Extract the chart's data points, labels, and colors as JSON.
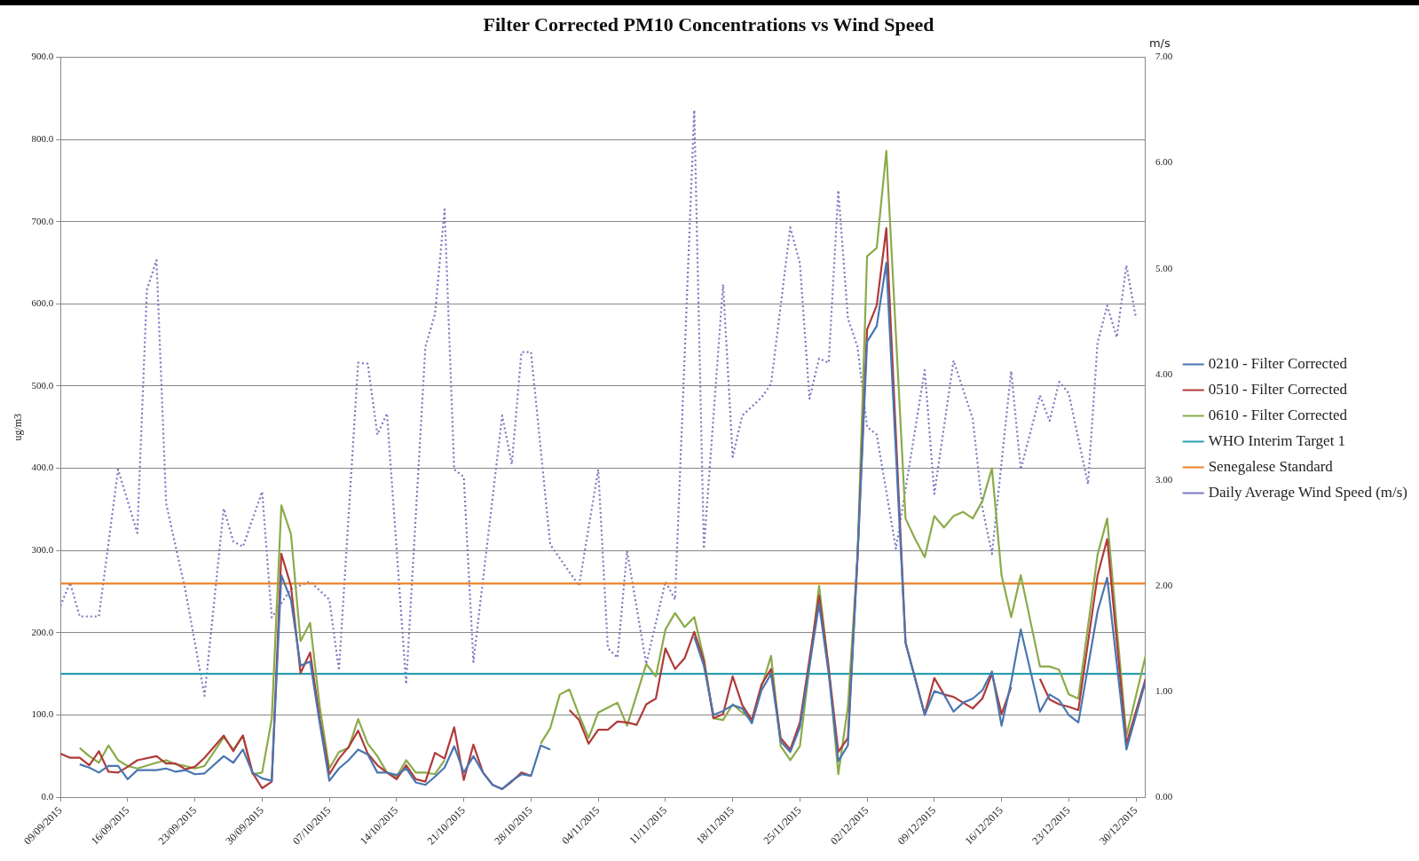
{
  "chart_data": {
    "type": "line",
    "title": "Filter Corrected PM10 Concentrations vs Wind Speed",
    "ylabel": "ug/m3",
    "y2label": "m/s",
    "xlim": [
      "2015-09-09",
      "2015-12-31"
    ],
    "xticks": [
      {
        "value": "2015-09-09",
        "label": "09/09/2015"
      },
      {
        "value": "2015-09-16",
        "label": "16/09/2015"
      },
      {
        "value": "2015-09-23",
        "label": "23/09/2015"
      },
      {
        "value": "2015-09-30",
        "label": "30/09/2015"
      },
      {
        "value": "2015-10-07",
        "label": "07/10/2015"
      },
      {
        "value": "2015-10-14",
        "label": "14/10/2015"
      },
      {
        "value": "2015-10-21",
        "label": "21/10/2015"
      },
      {
        "value": "2015-10-28",
        "label": "28/10/2015"
      },
      {
        "value": "2015-11-04",
        "label": "04/11/2015"
      },
      {
        "value": "2015-11-11",
        "label": "11/11/2015"
      },
      {
        "value": "2015-11-18",
        "label": "18/11/2015"
      },
      {
        "value": "2015-11-25",
        "label": "25/11/2015"
      },
      {
        "value": "2015-12-02",
        "label": "02/12/2015"
      },
      {
        "value": "2015-12-09",
        "label": "09/12/2015"
      },
      {
        "value": "2015-12-16",
        "label": "16/12/2015"
      },
      {
        "value": "2015-12-23",
        "label": "23/12/2015"
      },
      {
        "value": "2015-12-30",
        "label": "30/12/2015"
      }
    ],
    "ylim": [
      0,
      900
    ],
    "yticks": [
      {
        "value": 0,
        "label": "0.0"
      },
      {
        "value": 100,
        "label": "100.0"
      },
      {
        "value": 200,
        "label": "200.0"
      },
      {
        "value": 300,
        "label": "300.0"
      },
      {
        "value": 400,
        "label": "400.0"
      },
      {
        "value": 500,
        "label": "500.0"
      },
      {
        "value": 600,
        "label": "600.0"
      },
      {
        "value": 700,
        "label": "700.0"
      },
      {
        "value": 800,
        "label": "800.0"
      },
      {
        "value": 900,
        "label": "900.0"
      }
    ],
    "y2lim": [
      0,
      7
    ],
    "y2ticks": [
      {
        "value": 0,
        "label": "0.00"
      },
      {
        "value": 1,
        "label": "1.00"
      },
      {
        "value": 2,
        "label": "2.00"
      },
      {
        "value": 3,
        "label": "3.00"
      },
      {
        "value": 4,
        "label": "4.00"
      },
      {
        "value": 5,
        "label": "5.00"
      },
      {
        "value": 6,
        "label": "6.00"
      },
      {
        "value": 7,
        "label": "7.00"
      }
    ],
    "grid": "y",
    "legend": "right",
    "marker": "none",
    "ref_lines": [
      {
        "axis": "y",
        "value": 150,
        "label": "WHO Interim Target 1",
        "color": "#2a9fb0"
      },
      {
        "axis": "y",
        "value": 260,
        "label": "Senegalese Standard",
        "color": "#e8822a"
      }
    ],
    "series": [
      {
        "name": "0210 - Filter Corrected",
        "color": "#4a76b0",
        "x": [
          "2015-09-11",
          "2015-09-12",
          "2015-09-13",
          "2015-09-14",
          "2015-09-15",
          "2015-09-16",
          "2015-09-17",
          "2015-09-19",
          "2015-09-20",
          "2015-09-21",
          "2015-09-22",
          "2015-09-23",
          "2015-09-24",
          "2015-09-26",
          "2015-09-27",
          "2015-09-28",
          "2015-09-29",
          "2015-09-30",
          "2015-10-01",
          "2015-10-02",
          "2015-10-03",
          "2015-10-04",
          "2015-10-05",
          "2015-10-06",
          "2015-10-07",
          "2015-10-08",
          "2015-10-09",
          "2015-10-10",
          "2015-10-11",
          "2015-10-12",
          "2015-10-13",
          "2015-10-14",
          "2015-10-15",
          "2015-10-16",
          "2015-10-17",
          "2015-10-18",
          "2015-10-19",
          "2015-10-20",
          "2015-10-21",
          "2015-10-22",
          "2015-10-23",
          "2015-10-24",
          "2015-10-25",
          "2015-10-26",
          "2015-10-27",
          "2015-10-28",
          "2015-10-29",
          "2015-10-30",
          "2015-11-06",
          "2015-11-14",
          "2015-11-15",
          "2015-11-16",
          "2015-11-17",
          "2015-11-18",
          "2015-11-19",
          "2015-11-20",
          "2015-11-21",
          "2015-11-22",
          "2015-11-23",
          "2015-11-24",
          "2015-11-25",
          "2015-11-27",
          "2015-11-28",
          "2015-11-29",
          "2015-11-30",
          "2015-12-01",
          "2015-12-02",
          "2015-12-03",
          "2015-12-04",
          "2015-12-06",
          "2015-12-08",
          "2015-12-09",
          "2015-12-10",
          "2015-12-11",
          "2015-12-12",
          "2015-12-13",
          "2015-12-14",
          "2015-12-15",
          "2015-12-16",
          "2015-12-17",
          "2015-12-18",
          "2015-12-20",
          "2015-12-21",
          "2015-12-22",
          "2015-12-23",
          "2015-12-24",
          "2015-12-26",
          "2015-12-27",
          "2015-12-29",
          "2015-12-31"
        ],
        "values": [
          40,
          36,
          30,
          38,
          38,
          22,
          33,
          33,
          35,
          31,
          33,
          28,
          29,
          50,
          42,
          58,
          30,
          23,
          20,
          270,
          240,
          160,
          165,
          90,
          20,
          35,
          45,
          58,
          52,
          30,
          30,
          27,
          35,
          18,
          15,
          25,
          36,
          62,
          30,
          50,
          30,
          15,
          10,
          20,
          28,
          26,
          63,
          58,
          null,
          195,
          160,
          100,
          105,
          112,
          108,
          90,
          130,
          150,
          68,
          55,
          85,
          235,
          150,
          44,
          63,
          292,
          554,
          573,
          650,
          188,
          100,
          129,
          125,
          104,
          115,
          120,
          130,
          153,
          87,
          140,
          204,
          104,
          125,
          118,
          100,
          91,
          226,
          267,
          58,
          141
        ]
      },
      {
        "name": "0510 - Filter Corrected",
        "color": "#b03a3a",
        "x": [
          "2015-09-09",
          "2015-09-10",
          "2015-09-11",
          "2015-09-12",
          "2015-09-13",
          "2015-09-14",
          "2015-09-15",
          "2015-09-16",
          "2015-09-17",
          "2015-09-19",
          "2015-09-20",
          "2015-09-21",
          "2015-09-22",
          "2015-09-23",
          "2015-09-24",
          "2015-09-26",
          "2015-09-27",
          "2015-09-28",
          "2015-09-29",
          "2015-09-30",
          "2015-10-01",
          "2015-10-02",
          "2015-10-03",
          "2015-10-04",
          "2015-10-05",
          "2015-10-06",
          "2015-10-07",
          "2015-10-08",
          "2015-10-09",
          "2015-10-10",
          "2015-10-11",
          "2015-10-12",
          "2015-10-13",
          "2015-10-14",
          "2015-10-15",
          "2015-10-16",
          "2015-10-17",
          "2015-10-18",
          "2015-10-19",
          "2015-10-20",
          "2015-10-21",
          "2015-10-22",
          "2015-10-23",
          "2015-10-24",
          "2015-10-25",
          "2015-10-26",
          "2015-10-27",
          "2015-10-28",
          "2015-10-30",
          "2015-11-01",
          "2015-11-02",
          "2015-11-03",
          "2015-11-04",
          "2015-11-05",
          "2015-11-06",
          "2015-11-07",
          "2015-11-08",
          "2015-11-09",
          "2015-11-10",
          "2015-11-11",
          "2015-11-12",
          "2015-11-13",
          "2015-11-14",
          "2015-11-15",
          "2015-11-16",
          "2015-11-17",
          "2015-11-18",
          "2015-11-19",
          "2015-11-20",
          "2015-11-21",
          "2015-11-22",
          "2015-11-23",
          "2015-11-24",
          "2015-11-25",
          "2015-11-27",
          "2015-11-28",
          "2015-11-29",
          "2015-11-30",
          "2015-12-01",
          "2015-12-02",
          "2015-12-03",
          "2015-12-04",
          "2015-12-06",
          "2015-12-08",
          "2015-12-09",
          "2015-12-10",
          "2015-12-11",
          "2015-12-12",
          "2015-12-13",
          "2015-12-14",
          "2015-12-15",
          "2015-12-16",
          "2015-12-17",
          "2015-12-18",
          "2015-12-20",
          "2015-12-21",
          "2015-12-22",
          "2015-12-23",
          "2015-12-24",
          "2015-12-26",
          "2015-12-27",
          "2015-12-29",
          "2015-12-31"
        ],
        "values": [
          53,
          48,
          48,
          39,
          56,
          31,
          30,
          37,
          45,
          50,
          41,
          41,
          34,
          37,
          48,
          75,
          56,
          75,
          30,
          11,
          19,
          296,
          257,
          151,
          176,
          95,
          28,
          47,
          61,
          81,
          53,
          39,
          30,
          22,
          39,
          22,
          19,
          54,
          47,
          85,
          21,
          64,
          30,
          15,
          10,
          19,
          30,
          26,
          null,
          106,
          94,
          65,
          82,
          82,
          92,
          91,
          88,
          113,
          120,
          181,
          156,
          169,
          201,
          166,
          96,
          101,
          147,
          112,
          94,
          137,
          156,
          72,
          58,
          91,
          245,
          157,
          55,
          72,
          292,
          569,
          598,
          692,
          188,
          101,
          145,
          125,
          122,
          115,
          108,
          120,
          150,
          101,
          134,
          null,
          144,
          119,
          113,
          110,
          106,
          270,
          314,
          65,
          144
        ]
      },
      {
        "name": "0610 - Filter Corrected",
        "color": "#8bab4a",
        "x": [
          "2015-09-11",
          "2015-09-12",
          "2015-09-13",
          "2015-09-14",
          "2015-09-15",
          "2015-09-16",
          "2015-09-17",
          "2015-09-19",
          "2015-09-20",
          "2015-09-21",
          "2015-09-22",
          "2015-09-23",
          "2015-09-24",
          "2015-09-26",
          "2015-09-27",
          "2015-09-28",
          "2015-09-29",
          "2015-09-30",
          "2015-10-01",
          "2015-10-02",
          "2015-10-03",
          "2015-10-04",
          "2015-10-05",
          "2015-10-06",
          "2015-10-07",
          "2015-10-08",
          "2015-10-09",
          "2015-10-10",
          "2015-10-11",
          "2015-10-12",
          "2015-10-13",
          "2015-10-14",
          "2015-10-15",
          "2015-10-16",
          "2015-10-17",
          "2015-10-18",
          "2015-10-19",
          "2015-10-24",
          "2015-10-29",
          "2015-10-30",
          "2015-10-31",
          "2015-11-01",
          "2015-11-02",
          "2015-11-03",
          "2015-11-04",
          "2015-11-05",
          "2015-11-06",
          "2015-11-07",
          "2015-11-09",
          "2015-11-10",
          "2015-11-11",
          "2015-11-12",
          "2015-11-13",
          "2015-11-14",
          "2015-11-15",
          "2015-11-16",
          "2015-11-17",
          "2015-11-18",
          "2015-11-19",
          "2015-11-20",
          "2015-11-21",
          "2015-11-22",
          "2015-11-23",
          "2015-11-24",
          "2015-11-25",
          "2015-11-27",
          "2015-11-28",
          "2015-11-29",
          "2015-11-30",
          "2015-12-01",
          "2015-12-02",
          "2015-12-03",
          "2015-12-04",
          "2015-12-06",
          "2015-12-07",
          "2015-12-08",
          "2015-12-09",
          "2015-12-10",
          "2015-12-11",
          "2015-12-12",
          "2015-12-13",
          "2015-12-14",
          "2015-12-15",
          "2015-12-16",
          "2015-12-17",
          "2015-12-18",
          "2015-12-20",
          "2015-12-21",
          "2015-12-22",
          "2015-12-23",
          "2015-12-24",
          "2015-12-26",
          "2015-12-27",
          "2015-12-29",
          "2015-12-31"
        ],
        "values": [
          60,
          50,
          42,
          63,
          45,
          38,
          35,
          42,
          45,
          40,
          38,
          35,
          38,
          73,
          58,
          75,
          28,
          30,
          95,
          355,
          320,
          190,
          212,
          110,
          35,
          55,
          60,
          95,
          65,
          50,
          30,
          25,
          45,
          30,
          30,
          28,
          45,
          null,
          65,
          84,
          125,
          131,
          100,
          72,
          103,
          109,
          115,
          87,
          162,
          147,
          204,
          224,
          207,
          219,
          169,
          96,
          94,
          113,
          103,
          94,
          134,
          172,
          62,
          45,
          62,
          257,
          157,
          28,
          110,
          292,
          658,
          668,
          786,
          339,
          314,
          292,
          342,
          328,
          342,
          347,
          339,
          360,
          400,
          270,
          219,
          270,
          159,
          159,
          155,
          125,
          120,
          295,
          339,
          75,
          172
        ]
      },
      {
        "name": "Daily Average Wind Speed (m/s)",
        "color": "#7a78c0",
        "axis": "y2",
        "line_style": "dotted",
        "x": [
          "2015-09-09",
          "2015-09-10",
          "2015-09-11",
          "2015-09-13",
          "2015-09-15",
          "2015-09-17",
          "2015-09-18",
          "2015-09-19",
          "2015-09-20",
          "2015-09-22",
          "2015-09-24",
          "2015-09-26",
          "2015-09-27",
          "2015-09-28",
          "2015-09-30",
          "2015-10-01",
          "2015-10-03",
          "2015-10-05",
          "2015-10-07",
          "2015-10-08",
          "2015-10-10",
          "2015-10-11",
          "2015-10-12",
          "2015-10-13",
          "2015-10-15",
          "2015-10-17",
          "2015-10-18",
          "2015-10-19",
          "2015-10-20",
          "2015-10-21",
          "2015-10-22",
          "2015-10-25",
          "2015-10-26",
          "2015-10-27",
          "2015-10-28",
          "2015-10-30",
          "2015-11-02",
          "2015-11-04",
          "2015-11-05",
          "2015-11-06",
          "2015-11-07",
          "2015-11-09",
          "2015-11-11",
          "2015-11-12",
          "2015-11-14",
          "2015-11-15",
          "2015-11-17",
          "2015-11-18",
          "2015-11-19",
          "2015-11-21",
          "2015-11-22",
          "2015-11-24",
          "2015-11-25",
          "2015-11-26",
          "2015-11-27",
          "2015-11-28",
          "2015-11-29",
          "2015-11-30",
          "2015-12-01",
          "2015-12-02",
          "2015-12-03",
          "2015-12-05",
          "2015-12-08",
          "2015-12-09",
          "2015-12-11",
          "2015-12-13",
          "2015-12-14",
          "2015-12-15",
          "2015-12-17",
          "2015-12-18",
          "2015-12-20",
          "2015-12-21",
          "2015-12-22",
          "2015-12-23",
          "2015-12-25",
          "2015-12-26",
          "2015-12-27",
          "2015-12-28",
          "2015-12-29",
          "2015-12-30"
        ],
        "values": [
          1.81,
          2.03,
          1.71,
          1.71,
          3.1,
          2.5,
          4.8,
          5.08,
          2.78,
          1.96,
          0.96,
          2.73,
          2.42,
          2.37,
          2.89,
          1.7,
          1.97,
          2.04,
          1.87,
          1.2,
          4.11,
          4.1,
          3.43,
          3.63,
          1.07,
          4.26,
          4.57,
          5.56,
          3.1,
          3.03,
          1.28,
          3.61,
          3.15,
          4.21,
          4.21,
          2.39,
          2.0,
          3.1,
          1.41,
          1.32,
          2.33,
          1.26,
          2.04,
          1.87,
          6.5,
          2.35,
          4.85,
          3.22,
          3.61,
          3.78,
          3.91,
          5.39,
          5.05,
          3.77,
          4.15,
          4.11,
          5.74,
          4.53,
          4.26,
          3.5,
          3.43,
          2.35,
          4.04,
          2.87,
          4.13,
          3.58,
          2.74,
          2.3,
          4.03,
          3.1,
          3.8,
          3.56,
          3.93,
          3.82,
          2.96,
          4.3,
          4.65,
          4.35,
          5.03,
          4.53
        ]
      }
    ]
  }
}
